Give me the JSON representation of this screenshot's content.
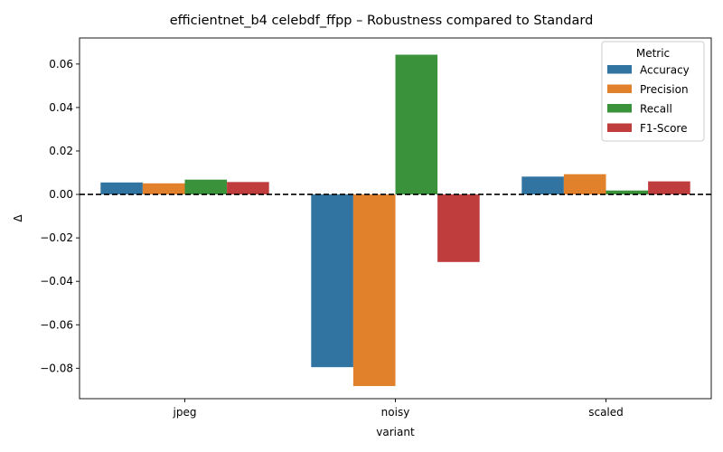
{
  "chart_data": {
    "type": "bar",
    "title": "efficientnet_b4 celebdf_ffpp – Robustness compared to Standard",
    "xlabel": "variant",
    "ylabel": "Δ",
    "categories": [
      "jpeg",
      "noisy",
      "scaled"
    ],
    "ylim": [
      -0.094,
      0.072
    ],
    "yticks": [
      -0.08,
      -0.06,
      -0.04,
      -0.02,
      0.0,
      0.02,
      0.04,
      0.06
    ],
    "ytick_labels": [
      "−0.08",
      "−0.06",
      "−0.04",
      "−0.02",
      "0.00",
      "0.02",
      "0.04",
      "0.06"
    ],
    "reference_line": 0,
    "grid": false,
    "legend": {
      "title": "Metric",
      "placement": "top-right"
    },
    "series": [
      {
        "name": "Accuracy",
        "color": "#3274a1",
        "values": [
          0.0055,
          -0.0795,
          0.0082
        ]
      },
      {
        "name": "Precision",
        "color": "#e1812c",
        "values": [
          0.0051,
          -0.0882,
          0.0093
        ]
      },
      {
        "name": "Recall",
        "color": "#3a923a",
        "values": [
          0.0068,
          0.0643,
          0.0018
        ]
      },
      {
        "name": "F1-Score",
        "color": "#c03d3e",
        "values": [
          0.0057,
          -0.0311,
          0.006
        ]
      }
    ]
  }
}
